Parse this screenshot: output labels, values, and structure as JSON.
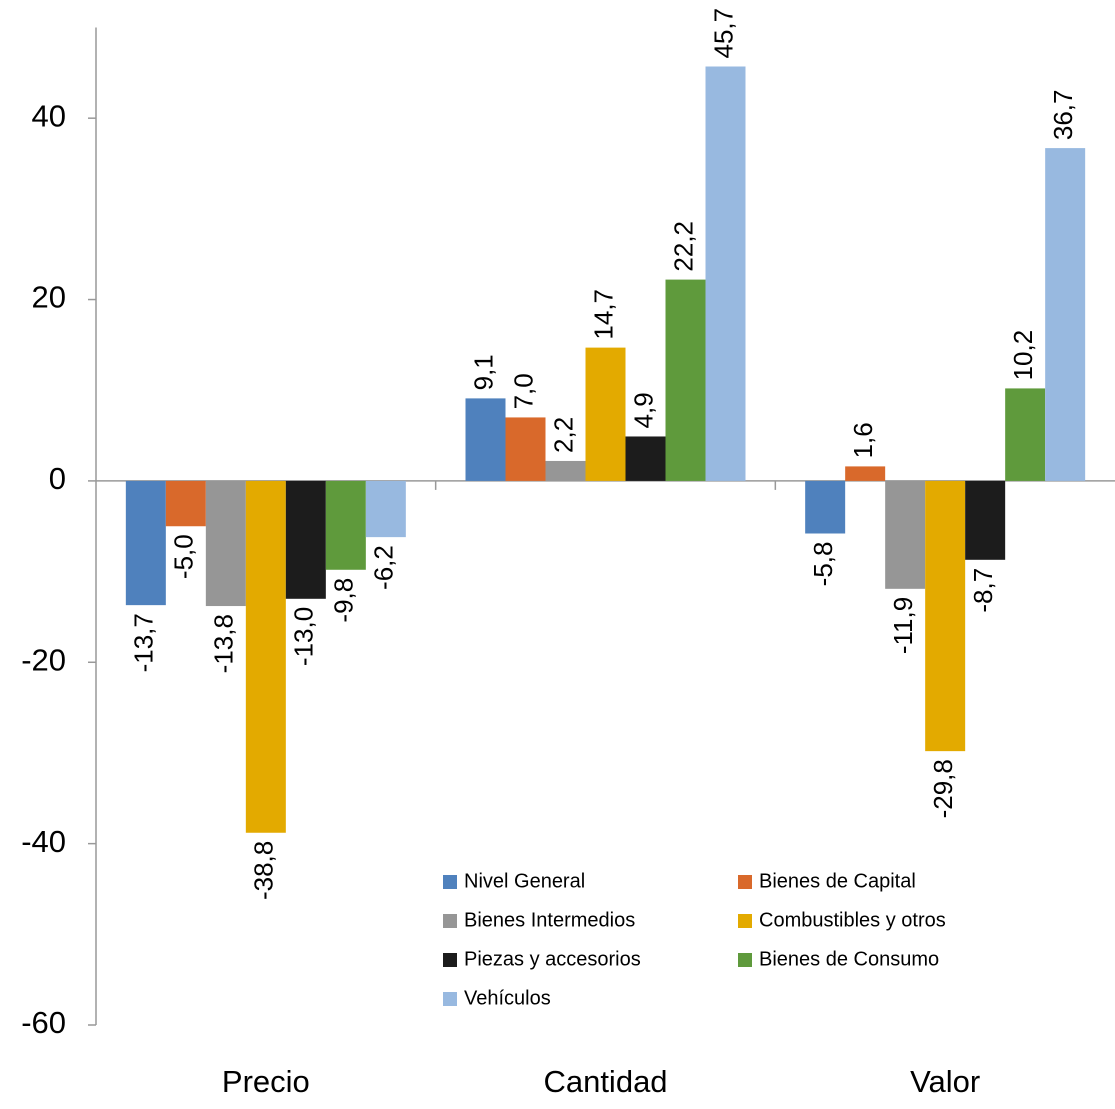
{
  "chart_data": {
    "type": "bar",
    "categories": [
      "Precio",
      "Cantidad",
      "Valor"
    ],
    "series": [
      {
        "name": "Nivel General",
        "color": "#4f81bd",
        "values": [
          -13.7,
          9.1,
          -5.8
        ],
        "value_labels": [
          "-13,7",
          "9,1",
          "-5,8"
        ]
      },
      {
        "name": "Bienes de Capital",
        "color": "#d9692b",
        "values": [
          -5.0,
          7.0,
          1.6
        ],
        "value_labels": [
          "-5,0",
          "7,0",
          "1,6"
        ]
      },
      {
        "name": "Bienes Intermedios",
        "color": "#969696",
        "values": [
          -13.8,
          2.2,
          -11.9
        ],
        "value_labels": [
          "-13,8",
          "2,2",
          "-11,9"
        ]
      },
      {
        "name": "Combustibles y otros",
        "color": "#e3aa00",
        "values": [
          -38.8,
          14.7,
          -29.8
        ],
        "value_labels": [
          "-38,8",
          "14,7",
          "-29,8"
        ]
      },
      {
        "name": "Piezas y accesorios",
        "color": "#1c1c1c",
        "values": [
          -13.0,
          4.9,
          -8.7
        ],
        "value_labels": [
          "-13,0",
          "4,9",
          "-8,7"
        ]
      },
      {
        "name": "Bienes de Consumo",
        "color": "#5f9a3c",
        "values": [
          -9.8,
          22.2,
          10.2
        ],
        "value_labels": [
          "-9,8",
          "22,2",
          "10,2"
        ]
      },
      {
        "name": "Vehículos",
        "color": "#98b9e0",
        "values": [
          -6.2,
          45.7,
          36.7
        ],
        "value_labels": [
          "-6,2",
          "45,7",
          "36,7"
        ]
      }
    ],
    "ylim": [
      -60,
      50
    ],
    "yticks": [
      40,
      20,
      0,
      -20,
      -40,
      -60
    ]
  }
}
